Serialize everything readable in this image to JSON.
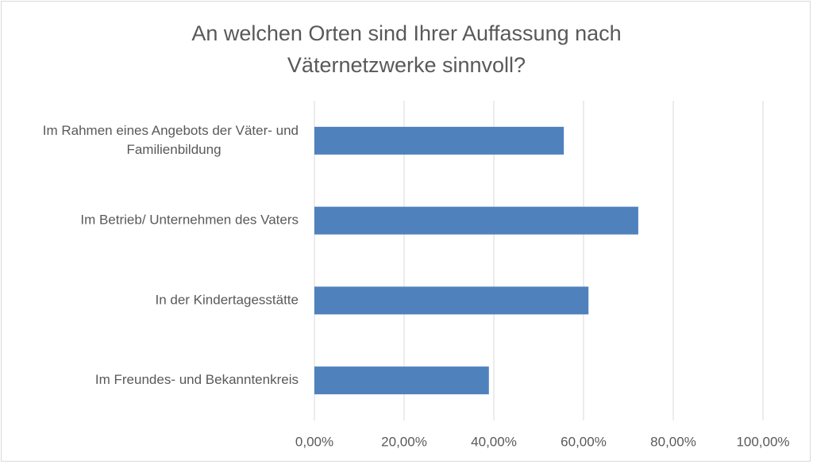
{
  "chart_data": {
    "type": "bar",
    "orientation": "horizontal",
    "title": "An welchen Orten sind Ihrer Auffassung nach\nVäternetzwerke sinnvoll?",
    "categories": [
      "Im Rahmen eines Angebots der Väter- und Familienbildung",
      "Im Betrieb/ Unternehmen des Vaters",
      "In der Kindertagesstätte",
      "Im Freundes- und Bekanntenkreis"
    ],
    "category_lines": [
      [
        "Im Rahmen eines Angebots der Väter- und",
        "Familienbildung"
      ],
      [
        "Im Betrieb/ Unternehmen des Vaters"
      ],
      [
        "In der Kindertagesstätte"
      ],
      [
        "Im Freundes- und Bekanntenkreis"
      ]
    ],
    "values": [
      55.6,
      72.2,
      61.1,
      38.9
    ],
    "xlim": [
      0,
      100
    ],
    "xticks": [
      0,
      20,
      40,
      60,
      80,
      100
    ],
    "xtick_labels": [
      "0,00%",
      "20,00%",
      "40,00%",
      "60,00%",
      "80,00%",
      "100,00%"
    ],
    "grid": true,
    "legend": "none",
    "bar_color": "#4f81bd",
    "grid_color": "#d9d9d9",
    "text_color": "#595959"
  }
}
